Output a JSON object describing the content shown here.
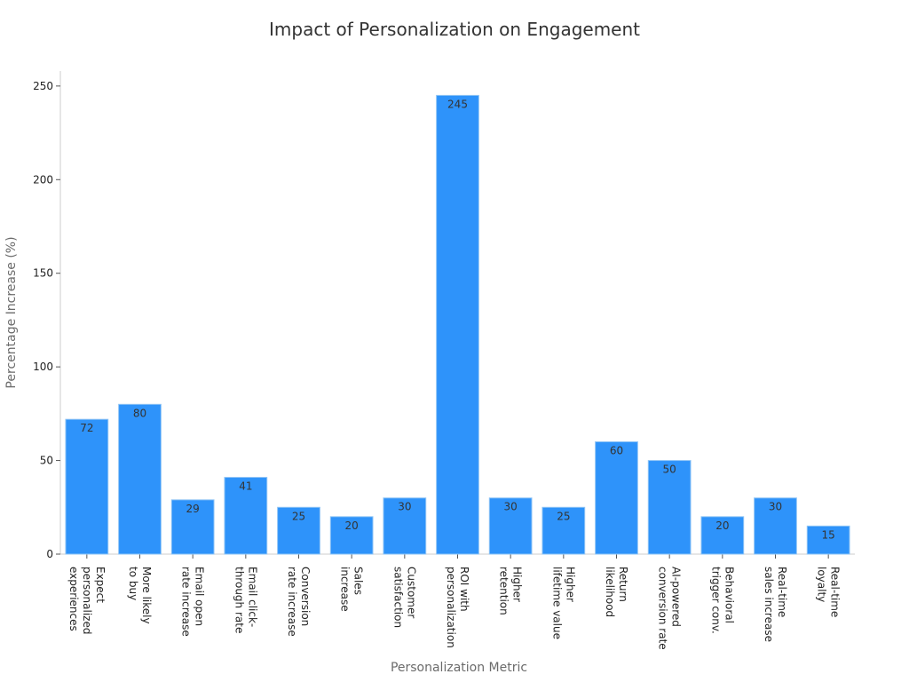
{
  "chart_data": {
    "type": "bar",
    "title": "Impact of Personalization on Engagement",
    "xlabel": "Personalization Metric",
    "ylabel": "Percentage Increase (%)",
    "ylim": [
      0,
      258
    ],
    "yticks": [
      0,
      50,
      100,
      150,
      200,
      250
    ],
    "grid": false,
    "bar_color": "#2e93fa",
    "categories": [
      [
        "Expect",
        "personalized",
        "experiences"
      ],
      [
        "More likely",
        "to buy"
      ],
      [
        "Email open",
        "rate increase"
      ],
      [
        "Email click-",
        "through rate"
      ],
      [
        "Conversion",
        "rate increase"
      ],
      [
        "Sales",
        "increase"
      ],
      [
        "Customer",
        "satisfaction"
      ],
      [
        "ROI with",
        "personalization"
      ],
      [
        "Higher",
        "retention"
      ],
      [
        "Higher",
        "lifetime value"
      ],
      [
        "Return",
        "likelihood"
      ],
      [
        "AI-powered",
        "conversion rate"
      ],
      [
        "Behavioral",
        "trigger conv."
      ],
      [
        "Real-time",
        "sales increase"
      ],
      [
        "Real-time",
        "loyalty"
      ]
    ],
    "values": [
      72,
      80,
      29,
      41,
      25,
      20,
      30,
      245,
      30,
      25,
      60,
      50,
      20,
      30,
      15
    ]
  }
}
